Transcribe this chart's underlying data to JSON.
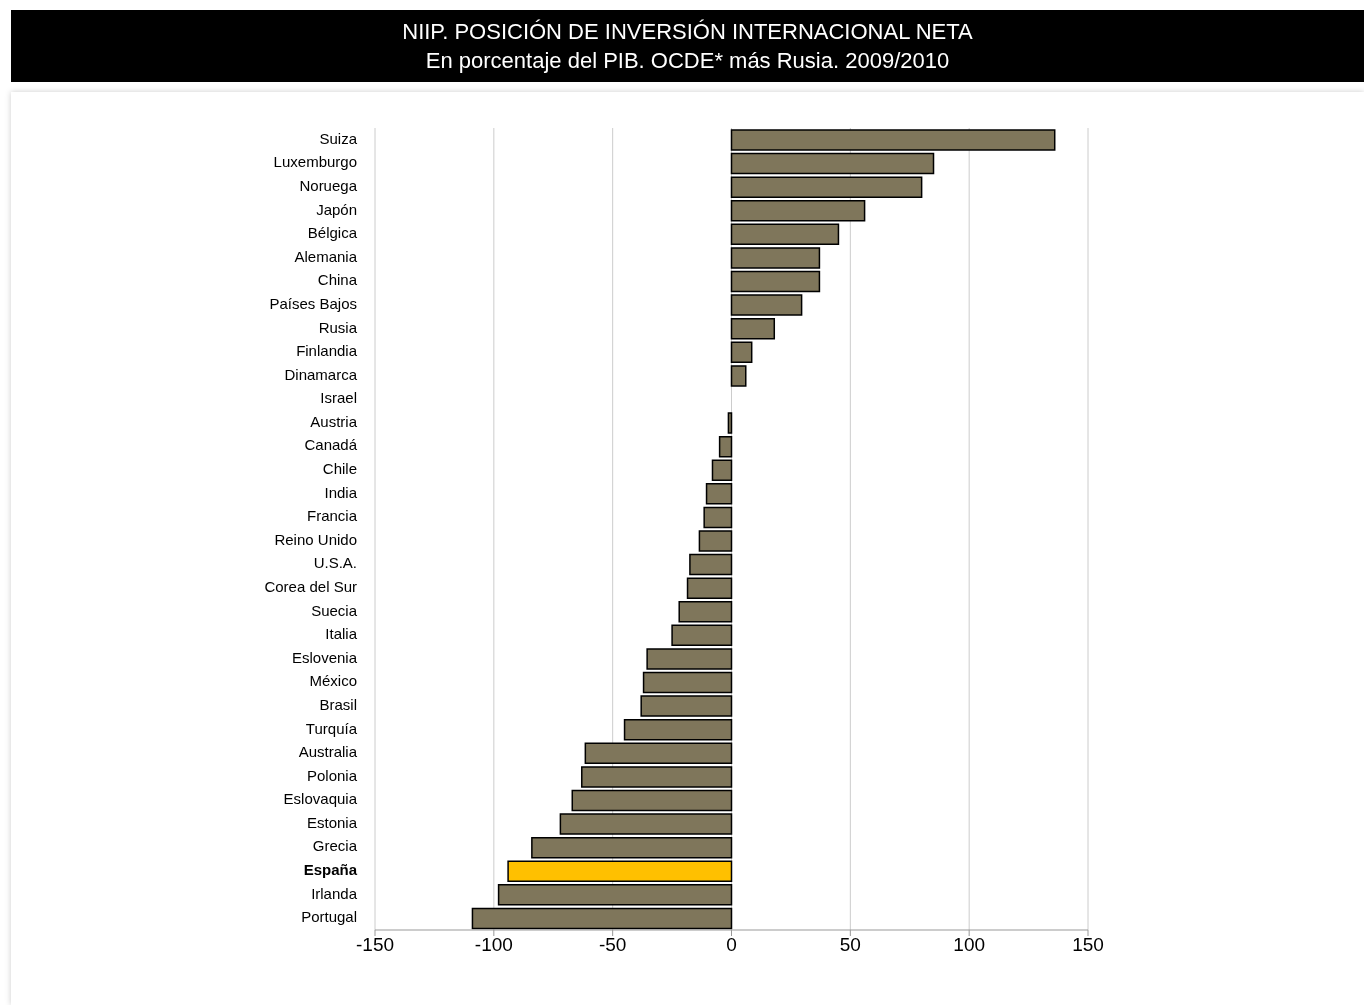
{
  "chart_data": {
    "type": "bar",
    "orientation": "horizontal",
    "title": "NIIP. POSICIÓN DE INVERSIÓN INTERNACIONAL NETA",
    "subtitle": "En porcentaje del PIB. OCDE* más Rusia. 2009/2010",
    "categories": [
      "Suiza",
      "Luxemburgo",
      "Noruega",
      "Japón",
      "Bélgica",
      "Alemania",
      "China",
      "Países Bajos",
      "Rusia",
      "Finlandia",
      "Dinamarca",
      "Israel",
      "Austria",
      "Canadá",
      "Chile",
      "India",
      "Francia",
      "Reino Unido",
      "U.S.A.",
      "Corea del Sur",
      "Suecia",
      "Italia",
      "Eslovenia",
      "México",
      "Brasil",
      "Turquía",
      "Australia",
      "Polonia",
      "Eslovaquia",
      "Estonia",
      "Grecia",
      "España",
      "Irlanda",
      "Portugal"
    ],
    "values": [
      136,
      85,
      80,
      56,
      45,
      37,
      37,
      29.5,
      18,
      8.5,
      6,
      0,
      -1.3,
      -5,
      -8,
      -10.5,
      -11.5,
      -13.5,
      -17.5,
      -18.5,
      -22,
      -25,
      -35.5,
      -37,
      -38,
      -45,
      -61.5,
      -63,
      -67,
      -72,
      -84,
      -94,
      -98,
      -109
    ],
    "colors": [
      "#7f765b",
      "#7f765b",
      "#7f765b",
      "#7f765b",
      "#7f765b",
      "#7f765b",
      "#7f765b",
      "#7f765b",
      "#7f765b",
      "#7f765b",
      "#7f765b",
      "#7f765b",
      "#7f765b",
      "#7f765b",
      "#7f765b",
      "#7f765b",
      "#7f765b",
      "#7f765b",
      "#7f765b",
      "#7f765b",
      "#7f765b",
      "#7f765b",
      "#7f765b",
      "#7f765b",
      "#7f765b",
      "#7f765b",
      "#7f765b",
      "#7f765b",
      "#7f765b",
      "#7f765b",
      "#7f765b",
      "#ffc000",
      "#7f765b",
      "#7f765b"
    ],
    "xlim": [
      -150,
      150
    ],
    "xticks": [
      -150,
      -100,
      -50,
      0,
      50,
      100,
      150
    ],
    "grid": "x",
    "legend": false
  }
}
